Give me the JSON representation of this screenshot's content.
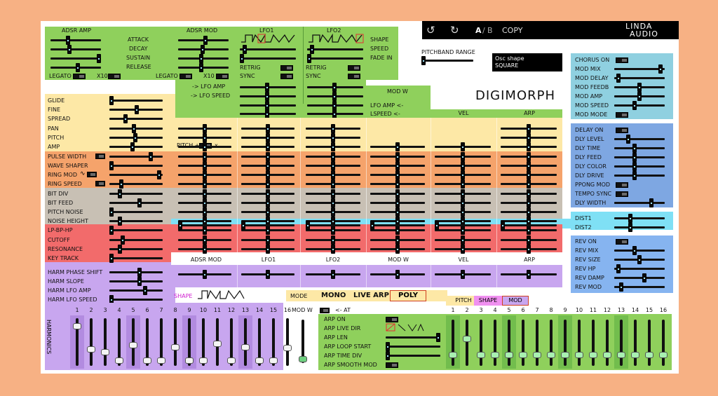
{
  "header": {
    "ab_label": "A",
    "ab_sep": "/",
    "ab_b": "B",
    "copy": "COPY",
    "logo_top": "LINDA",
    "logo_bottom": "AUDIO",
    "pitchband": "PITCHBAND RANGE",
    "osc_title": "Osc shape",
    "osc_value": "SQUARE",
    "app_title": "DIGIMORPH"
  },
  "adsr_amp": {
    "title": "ADSR AMP",
    "labels": [
      "ATTACK",
      "DECAY",
      "SUSTAIN",
      "RELEASE"
    ],
    "legato": "LEGATO",
    "x10": "X10"
  },
  "adsr_mod": {
    "title": "ADSR MOD",
    "legato": "LEGATO",
    "x10": "X10",
    "lfo_amp": "-> LFO AMP",
    "lfo_speed": "-> LFO SPEED"
  },
  "lfo1": {
    "title": "LFO1",
    "retrig": "RETRIG",
    "sync": "SYNC"
  },
  "lfo2": {
    "title": "LFO2",
    "retrig": "RETRIG",
    "sync": "SYNC"
  },
  "lfo_labels": [
    "SHAPE",
    "SPEED",
    "FADE IN"
  ],
  "modw": {
    "title": "MOD W",
    "lfo_amp": "LFO AMP <-",
    "lspeed": "LSPEED <-"
  },
  "columns": {
    "vel": "VEL",
    "arp": "ARP"
  },
  "pitch_plus": "PITCH +",
  "pitch_x": "x",
  "left_params": [
    "GLIDE",
    "FINE",
    "SPREAD",
    "PAN",
    "PITCH",
    "AMP",
    "PULSE WIDTH",
    "WAVE SHAPER",
    "RING MOD",
    "RING SPEED",
    "BIT DIV",
    "BIT FEED",
    "PITCH NOISE",
    "NOISE HEIGHT",
    "LP-BP-HP",
    "CUTOFF",
    "RESONANCE",
    "KEY TRACK"
  ],
  "mod_sources": [
    "ADSR MOD",
    "LFO1",
    "LFO2",
    "MOD W",
    "VEL",
    "ARP"
  ],
  "harm": {
    "labels": [
      "HARM PHASE SHIFT",
      "HARM SLOPE",
      "HARM LFO AMP",
      "HARM LFO SPEED"
    ],
    "vertical_label": "HARMONICS",
    "numbers": [
      "1",
      "2",
      "3",
      "4",
      "5",
      "6",
      "7",
      "8",
      "9",
      "10",
      "11",
      "12",
      "13",
      "14",
      "15",
      "16"
    ],
    "levels": [
      0.88,
      0.32,
      0.25,
      0.05,
      0.42,
      0.05,
      0.05,
      0.38,
      0.05,
      0.05,
      0.45,
      0.05,
      0.38,
      0.05,
      0.05,
      0.35
    ]
  },
  "shape_label": "SHAPE",
  "mode": {
    "label": "MODE",
    "mono": "MONO",
    "live_arp": "LIVE ARP",
    "poly": "POLY"
  },
  "modw_at": {
    "label": "MOD W",
    "at": "<- AT"
  },
  "arp": {
    "labels": [
      "ARP ON",
      "ARP LIVE DIR",
      "ARP LEN",
      "ARP LOOP START",
      "ARP TIME DIV",
      "ARP SMOOTH MOD"
    ]
  },
  "seq_tabs": {
    "pitch": "PITCH",
    "shape": "SHAPE",
    "mod": "MOD"
  },
  "seq": {
    "numbers": [
      "1",
      "2",
      "3",
      "4",
      "5",
      "6",
      "7",
      "8",
      "9",
      "10",
      "11",
      "12",
      "13",
      "14",
      "15",
      "16"
    ],
    "levels": [
      0.2,
      0.6,
      0.2,
      0.2,
      0.2,
      0.2,
      0.2,
      0.2,
      0.2,
      0.2,
      0.2,
      0.2,
      0.2,
      0.2,
      0.2,
      0.2
    ]
  },
  "chorus": [
    "CHORUS ON",
    "MOD MIX",
    "MOD DELAY",
    "MOD FEEDB",
    "MOD AMP",
    "MOD SPEED",
    "MOD MODE"
  ],
  "delay": [
    "DELAY ON",
    "DLY LEVEL",
    "DLY TIME",
    "DLY FEED",
    "DLY COLOR",
    "DLY DRIVE",
    "PPONG MOD",
    "TEMPO SYNC",
    "DLY WIDTH"
  ],
  "dist": [
    "DIST1",
    "DIST2"
  ],
  "reverb": [
    "REV ON",
    "REV MIX",
    "REV SIZE",
    "REV HP",
    "REV DAMP",
    "REV MOD"
  ],
  "colors": {
    "green": "#8fd05c",
    "yellow": "#fde8a6",
    "orange": "#f5a36b",
    "gray": "#c8c0b4",
    "red": "#f26b6b",
    "purple": "#c8a6ef",
    "cyan": "#7fe0f5",
    "blue_top": "#8fd0e0",
    "blue_mid": "#7ea7e2",
    "blue_rev": "#86b4f0",
    "black": "#000000"
  }
}
